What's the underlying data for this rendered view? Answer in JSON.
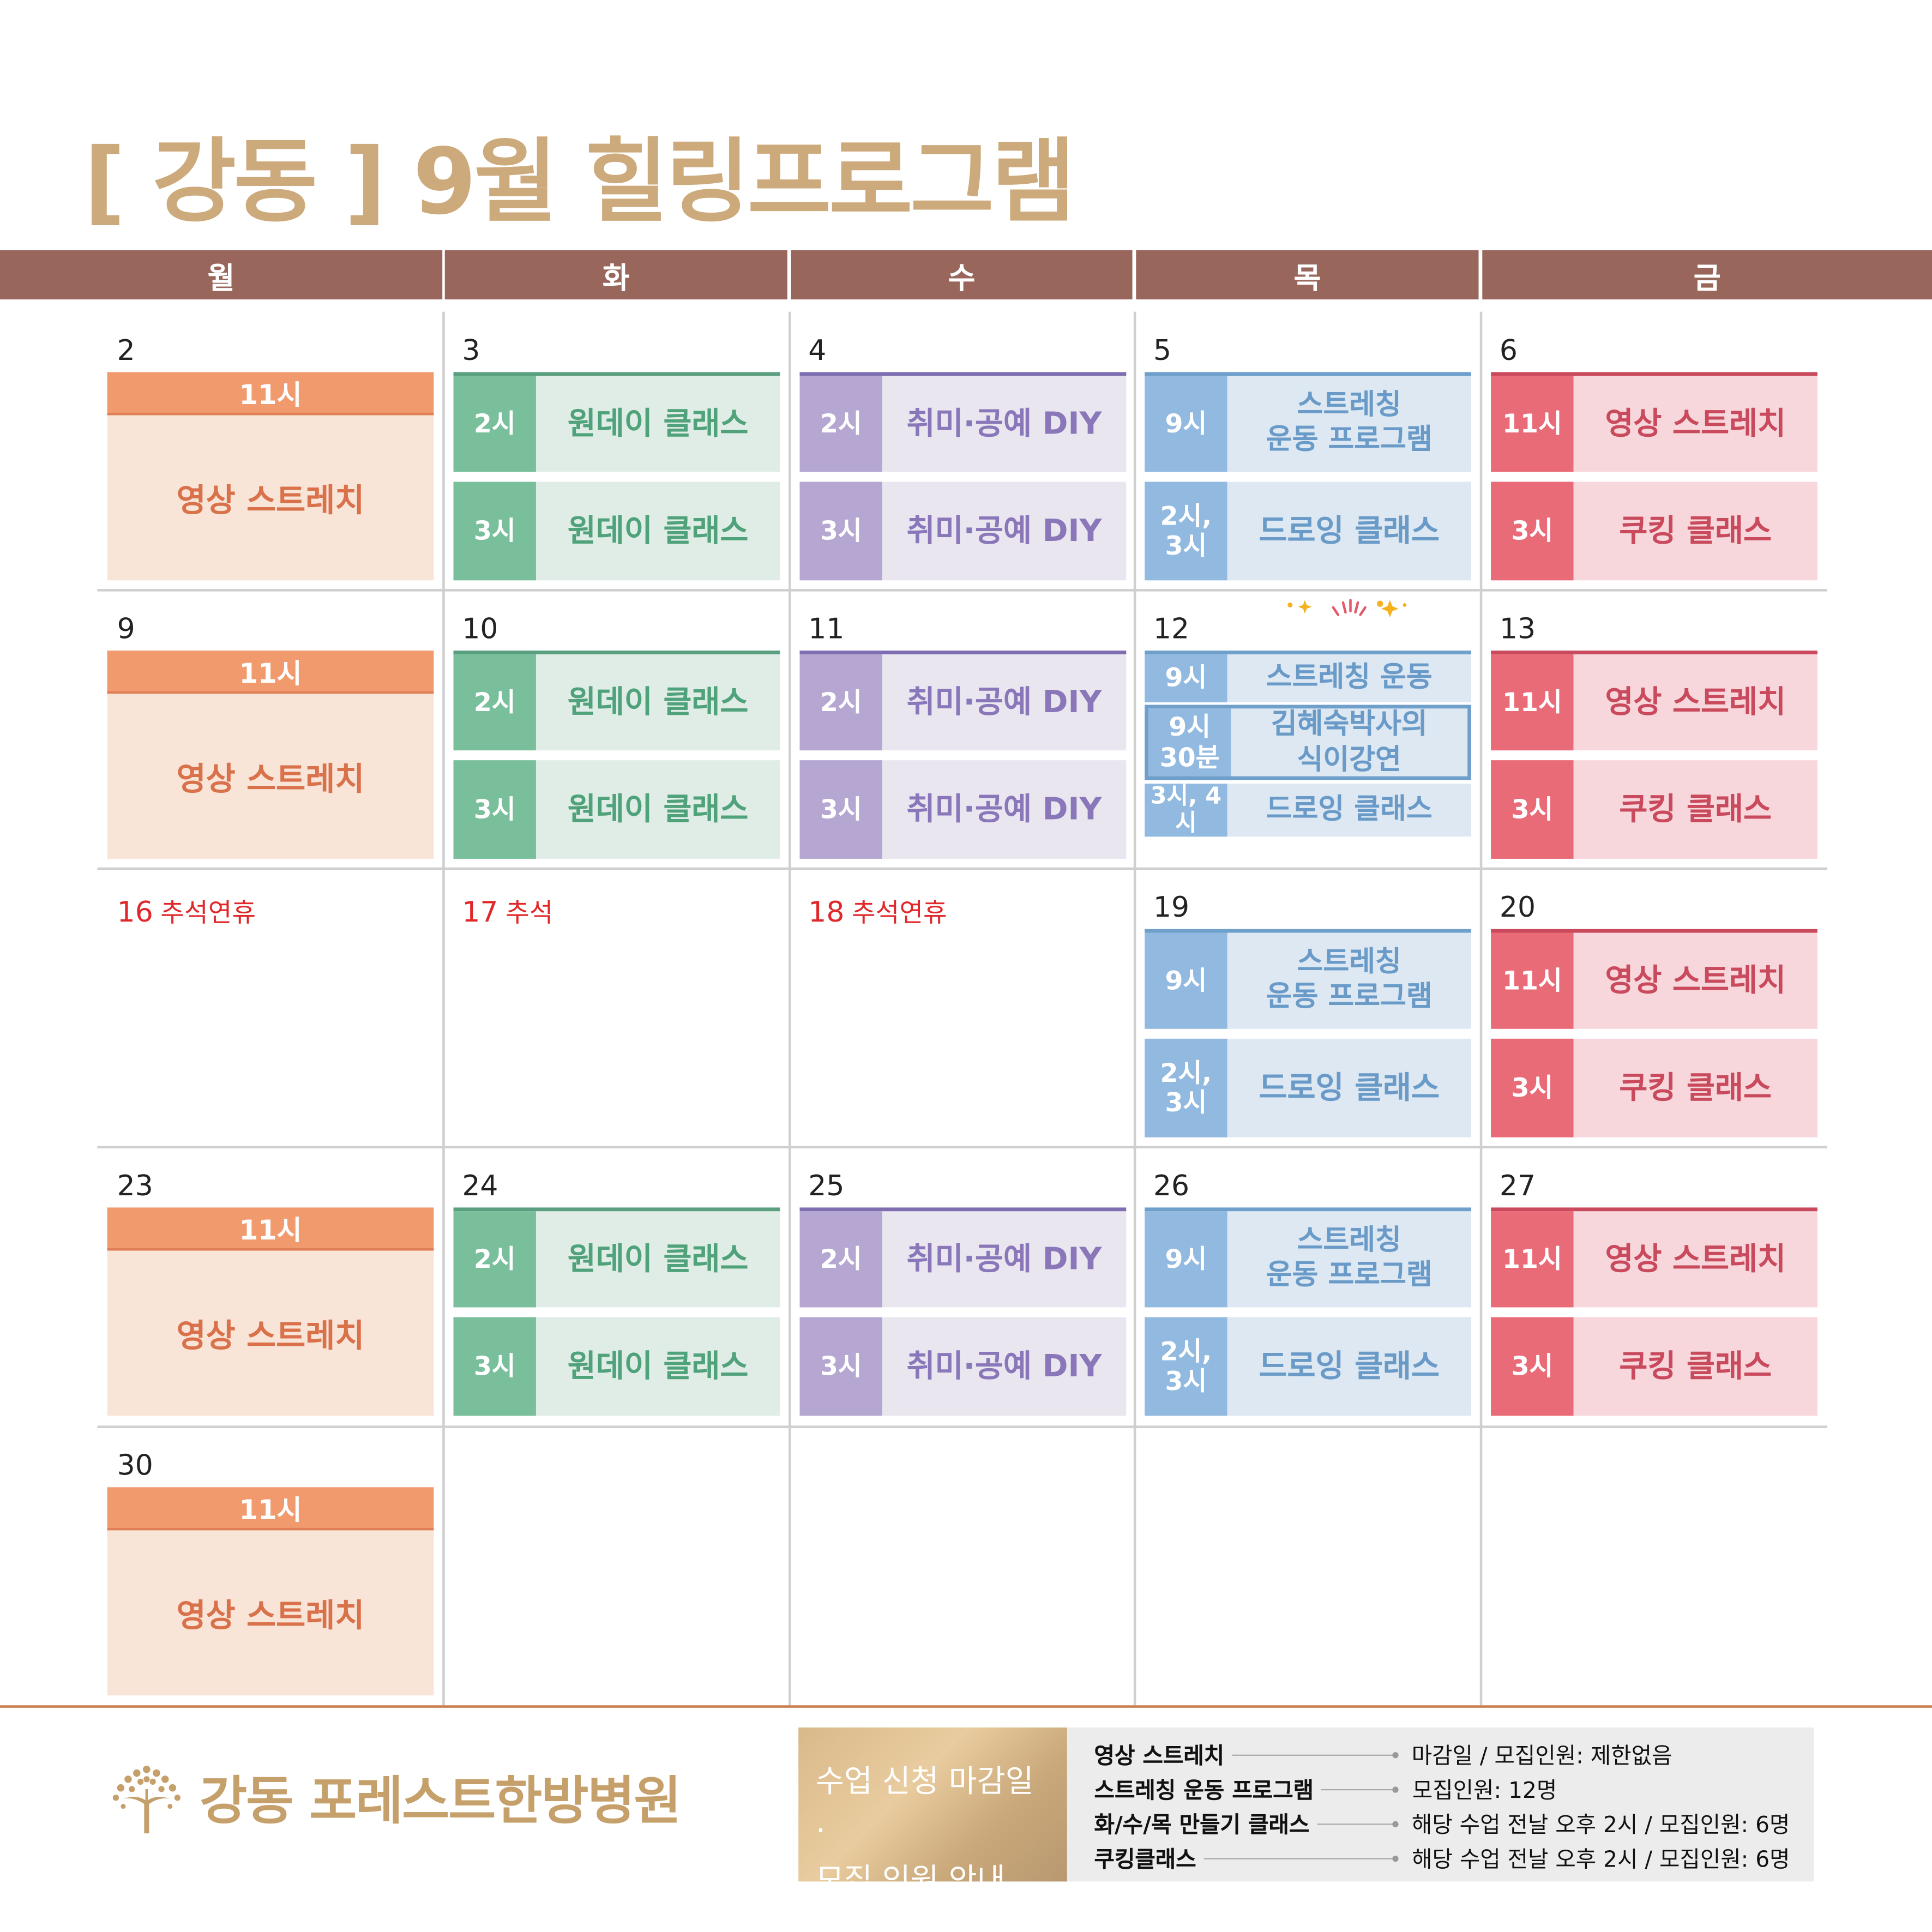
{
  "title": "[ 강동 ] 9월 힐링프로그램",
  "weekdays": [
    "월",
    "화",
    "수",
    "목",
    "금"
  ],
  "colors": {
    "header": "#98665a",
    "title": "#cdaa7c",
    "green": {
      "time": "#79bf9c",
      "body": "#e0ede6",
      "text": "#4fa27a",
      "line": "#5a9f7f"
    },
    "purple": {
      "time": "#b5a7d1",
      "body": "#e9e6f0",
      "text": "#8a77b9",
      "line": "#7e6db0"
    },
    "blue": {
      "time": "#92b9df",
      "body": "#dde8f2",
      "text": "#6a9bc8",
      "line": "#6f9fcb"
    },
    "red": {
      "time": "#ea6b78",
      "body": "#f7d7dc",
      "text": "#c94a5c",
      "line": "#c94a5c"
    },
    "holiday": "#e0282b"
  },
  "weeks": [
    [
      {
        "date": "2",
        "type": "mon",
        "time": "11시",
        "name": "영상 스트레치"
      },
      {
        "date": "3",
        "type": "green",
        "slots": [
          {
            "time": "2시",
            "name": "원데이 클래스"
          },
          {
            "time": "3시",
            "name": "원데이 클래스"
          }
        ]
      },
      {
        "date": "4",
        "type": "purple",
        "slots": [
          {
            "time": "2시",
            "name": "취미·공예 DIY"
          },
          {
            "time": "3시",
            "name": "취미·공예 DIY"
          }
        ]
      },
      {
        "date": "5",
        "type": "blue",
        "slots": [
          {
            "time": "9시",
            "name": "스트레칭\n운동 프로그램"
          },
          {
            "time": "2시,\n3시",
            "name": "드로잉 클래스"
          }
        ]
      },
      {
        "date": "6",
        "type": "red",
        "slots": [
          {
            "time": "11시",
            "name": "영상 스트레치"
          },
          {
            "time": "3시",
            "name": "쿠킹 클래스"
          }
        ]
      }
    ],
    [
      {
        "date": "9",
        "type": "mon",
        "time": "11시",
        "name": "영상 스트레치"
      },
      {
        "date": "10",
        "type": "green",
        "slots": [
          {
            "time": "2시",
            "name": "원데이 클래스"
          },
          {
            "time": "3시",
            "name": "원데이 클래스"
          }
        ]
      },
      {
        "date": "11",
        "type": "purple",
        "slots": [
          {
            "time": "2시",
            "name": "취미·공예 DIY"
          },
          {
            "time": "3시",
            "name": "취미·공예 DIY"
          }
        ]
      },
      {
        "date": "12",
        "type": "blue3",
        "slots": [
          {
            "time": "9시",
            "name": "스트레칭 운동"
          },
          {
            "time": "9시\n30분",
            "name": "김혜숙박사의\n식이강연"
          },
          {
            "time": "3시, 4시",
            "name": "드로잉 클래스"
          }
        ]
      },
      {
        "date": "13",
        "type": "red",
        "slots": [
          {
            "time": "11시",
            "name": "영상 스트레치"
          },
          {
            "time": "3시",
            "name": "쿠킹 클래스"
          }
        ]
      }
    ],
    [
      {
        "date": "16",
        "type": "holiday",
        "holiday": "추석연휴"
      },
      {
        "date": "17",
        "type": "holiday",
        "holiday": "추석"
      },
      {
        "date": "18",
        "type": "holiday",
        "holiday": "추석연휴"
      },
      {
        "date": "19",
        "type": "blue",
        "slots": [
          {
            "time": "9시",
            "name": "스트레칭\n운동 프로그램"
          },
          {
            "time": "2시,\n3시",
            "name": "드로잉 클래스"
          }
        ]
      },
      {
        "date": "20",
        "type": "red",
        "slots": [
          {
            "time": "11시",
            "name": "영상 스트레치"
          },
          {
            "time": "3시",
            "name": "쿠킹 클래스"
          }
        ]
      }
    ],
    [
      {
        "date": "23",
        "type": "mon",
        "time": "11시",
        "name": "영상 스트레치"
      },
      {
        "date": "24",
        "type": "green",
        "slots": [
          {
            "time": "2시",
            "name": "원데이 클래스"
          },
          {
            "time": "3시",
            "name": "원데이 클래스"
          }
        ]
      },
      {
        "date": "25",
        "type": "purple",
        "slots": [
          {
            "time": "2시",
            "name": "취미·공예 DIY"
          },
          {
            "time": "3시",
            "name": "취미·공예 DIY"
          }
        ]
      },
      {
        "date": "26",
        "type": "blue",
        "slots": [
          {
            "time": "9시",
            "name": "스트레칭\n운동 프로그램"
          },
          {
            "time": "2시,\n3시",
            "name": "드로잉 클래스"
          }
        ]
      },
      {
        "date": "27",
        "type": "red",
        "slots": [
          {
            "time": "11시",
            "name": "영상 스트레치"
          },
          {
            "time": "3시",
            "name": "쿠킹 클래스"
          }
        ]
      }
    ],
    [
      {
        "date": "30",
        "type": "mon",
        "time": "11시",
        "name": "영상 스트레치"
      }
    ]
  ],
  "footer": {
    "hospital": "강동 포레스트한방병원",
    "info_title_1": "수업 신청 마감일 ·",
    "info_title_2": "모집 인원 안내",
    "rows": [
      {
        "label": "영상 스트레치",
        "value": "마감일 / 모집인원: 제한없음"
      },
      {
        "label": "스트레칭 운동 프로그램",
        "value": "모집인원: 12명"
      },
      {
        "label": "화/수/목 만들기 클래스",
        "value": "해당 수업 전날 오후 2시 / 모집인원: 6명"
      },
      {
        "label": "쿠킹클래스",
        "value": "해당 수업 전날 오후 2시 / 모집인원: 6명"
      }
    ]
  }
}
